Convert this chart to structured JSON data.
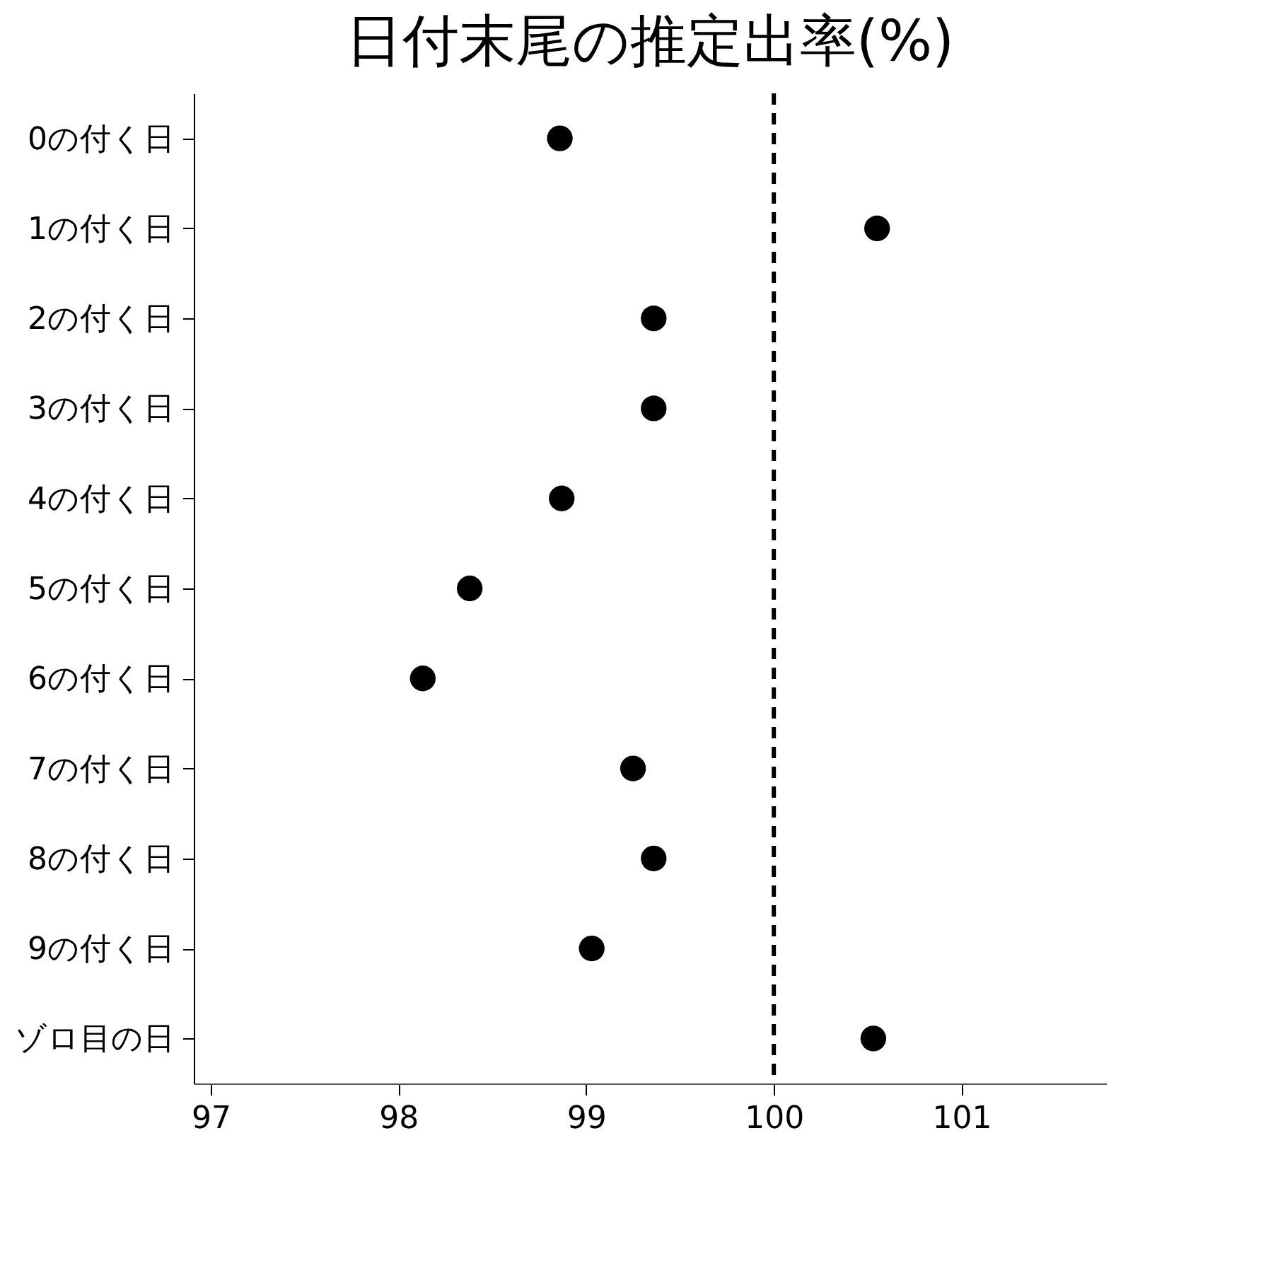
{
  "chart_data": {
    "type": "scatter",
    "title": "日付末尾の推定出率(%)",
    "categories": [
      "0の付く日",
      "1の付く日",
      "2の付く日",
      "3の付く日",
      "4の付く日",
      "5の付く日",
      "6の付く日",
      "7の付く日",
      "8の付く日",
      "9の付く日",
      "ゾロ目の日"
    ],
    "orientation": "horizontal",
    "series": [
      {
        "color": "#000000",
        "values": [
          98.86,
          100.55,
          99.36,
          99.36,
          98.87,
          98.38,
          98.13,
          99.25,
          99.36,
          99.03,
          100.53
        ]
      }
    ],
    "xlim": [
      96.91,
      101.77
    ],
    "xticks": [
      97,
      98,
      99,
      100,
      101
    ],
    "ref_lines": [
      {
        "axis": "x",
        "value": 100,
        "color": "#000000",
        "line_style": "dashed"
      }
    ],
    "marker": "circle",
    "grid": false,
    "legend": false
  }
}
